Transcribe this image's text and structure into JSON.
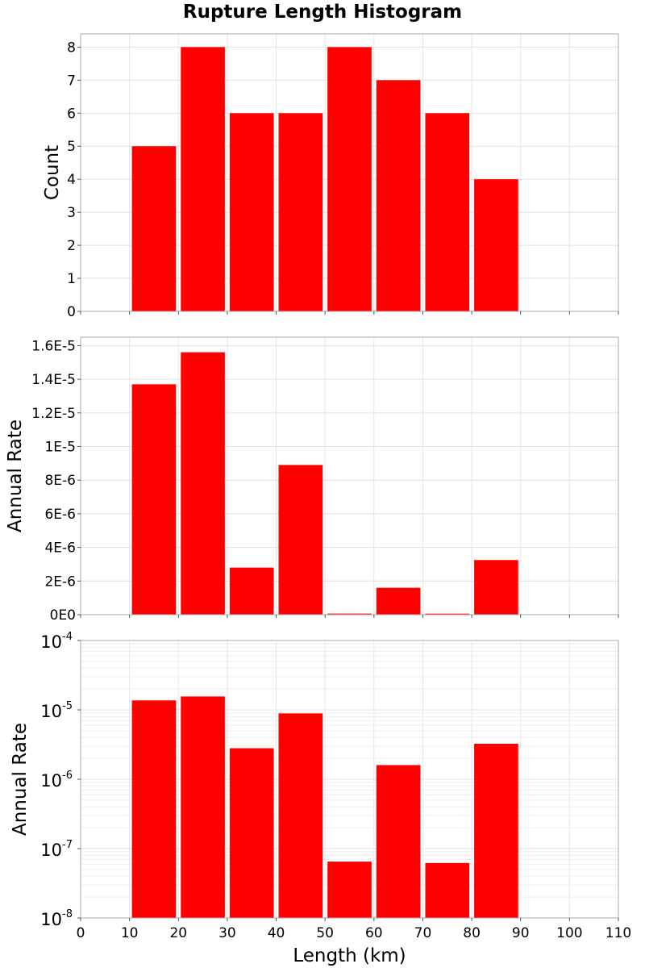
{
  "chart_data": {
    "title": "Rupture Length Histogram",
    "xlabel": "Length (km)",
    "xlim": [
      0,
      110
    ],
    "xticks": [
      "0",
      "10",
      "20",
      "30",
      "40",
      "50",
      "60",
      "70",
      "80",
      "90",
      "100",
      "110"
    ],
    "bar_color": "#ff0000",
    "panels": [
      {
        "type": "bar",
        "ylabel": "Count",
        "yscale": "linear",
        "ylim": [
          0,
          8.4
        ],
        "yticks": [
          {
            "value": 0,
            "label": "0"
          },
          {
            "value": 1,
            "label": "1"
          },
          {
            "value": 2,
            "label": "2"
          },
          {
            "value": 3,
            "label": "3"
          },
          {
            "value": 4,
            "label": "4"
          },
          {
            "value": 5,
            "label": "5"
          },
          {
            "value": 6,
            "label": "6"
          },
          {
            "value": 7,
            "label": "7"
          },
          {
            "value": 8,
            "label": "8"
          }
        ],
        "bins": [
          [
            10,
            20
          ],
          [
            20,
            30
          ],
          [
            30,
            40
          ],
          [
            40,
            50
          ],
          [
            50,
            60
          ],
          [
            60,
            70
          ],
          [
            70,
            80
          ],
          [
            80,
            90
          ]
        ],
        "values": [
          5,
          8,
          6,
          6,
          8,
          7,
          6,
          4
        ]
      },
      {
        "type": "bar",
        "ylabel": "Annual Rate",
        "yscale": "linear",
        "ylim": [
          0,
          1.65e-05
        ],
        "yticks": [
          {
            "value": 0,
            "label": "0E0"
          },
          {
            "value": 2e-06,
            "label": "2E-6"
          },
          {
            "value": 4e-06,
            "label": "4E-6"
          },
          {
            "value": 6e-06,
            "label": "6E-6"
          },
          {
            "value": 8e-06,
            "label": "8E-6"
          },
          {
            "value": 1e-05,
            "label": "1E-5"
          },
          {
            "value": 1.2e-05,
            "label": "1.2E-5"
          },
          {
            "value": 1.4e-05,
            "label": "1.4E-5"
          },
          {
            "value": 1.6e-05,
            "label": "1.6E-5"
          }
        ],
        "bins": [
          [
            10,
            20
          ],
          [
            20,
            30
          ],
          [
            30,
            40
          ],
          [
            40,
            50
          ],
          [
            50,
            60
          ],
          [
            60,
            70
          ],
          [
            70,
            80
          ],
          [
            80,
            90
          ]
        ],
        "values": [
          1.37e-05,
          1.56e-05,
          2.8e-06,
          8.9e-06,
          6.5e-08,
          1.6e-06,
          6.2e-08,
          3.25e-06
        ]
      },
      {
        "type": "bar",
        "ylabel": "Annual Rate",
        "yscale": "log",
        "ylim": [
          1e-08,
          0.0001
        ],
        "yticks": [
          {
            "value": 1e-08,
            "base": "10",
            "exp": "-8"
          },
          {
            "value": 1e-07,
            "base": "10",
            "exp": "-7"
          },
          {
            "value": 1e-06,
            "base": "10",
            "exp": "-6"
          },
          {
            "value": 1e-05,
            "base": "10",
            "exp": "-5"
          },
          {
            "value": 0.0001,
            "base": "10",
            "exp": "-4"
          }
        ],
        "bins": [
          [
            10,
            20
          ],
          [
            20,
            30
          ],
          [
            30,
            40
          ],
          [
            40,
            50
          ],
          [
            50,
            60
          ],
          [
            60,
            70
          ],
          [
            70,
            80
          ],
          [
            80,
            90
          ]
        ],
        "values": [
          1.37e-05,
          1.56e-05,
          2.8e-06,
          8.9e-06,
          6.5e-08,
          1.6e-06,
          6.2e-08,
          3.25e-06
        ]
      }
    ]
  }
}
